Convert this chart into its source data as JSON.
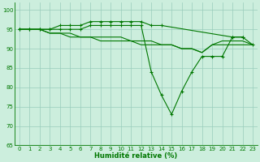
{
  "x": [
    0,
    1,
    2,
    3,
    4,
    5,
    6,
    7,
    8,
    9,
    10,
    11,
    12,
    13,
    14,
    15,
    16,
    17,
    18,
    19,
    20,
    21,
    22,
    23
  ],
  "line_max": [
    95,
    95,
    95,
    95,
    96,
    96,
    96,
    97,
    97,
    97,
    97,
    97,
    97,
    96,
    96,
    null,
    null,
    null,
    null,
    null,
    null,
    93,
    93,
    null
  ],
  "line_mid": [
    95,
    95,
    95,
    95,
    95,
    95,
    95,
    96,
    96,
    96,
    96,
    96,
    96,
    84,
    78,
    73,
    79,
    84,
    88,
    88,
    88,
    93,
    93,
    91
  ],
  "line_min": [
    95,
    95,
    95,
    94,
    94,
    94,
    93,
    93,
    93,
    93,
    93,
    92,
    92,
    92,
    91,
    91,
    90,
    90,
    89,
    91,
    92,
    92,
    92,
    91
  ],
  "line_low": [
    95,
    95,
    95,
    94,
    94,
    93,
    93,
    93,
    92,
    92,
    92,
    92,
    91,
    91,
    91,
    91,
    90,
    90,
    89,
    91,
    91,
    91,
    91,
    91
  ],
  "color": "#007700",
  "bg_color": "#cceedd",
  "grid_color": "#99ccbb",
  "xlabel": "Humidité relative (%)",
  "ylim": [
    65,
    102
  ],
  "yticks": [
    65,
    70,
    75,
    80,
    85,
    90,
    95,
    100
  ],
  "xticks": [
    0,
    1,
    2,
    3,
    4,
    5,
    6,
    7,
    8,
    9,
    10,
    11,
    12,
    13,
    14,
    15,
    16,
    17,
    18,
    19,
    20,
    21,
    22,
    23
  ],
  "xlim": [
    -0.5,
    23.5
  ],
  "marker": "+",
  "markersize": 3,
  "markeredgewidth": 0.8,
  "linewidth": 0.8,
  "tick_fontsize": 5,
  "xlabel_fontsize": 6
}
